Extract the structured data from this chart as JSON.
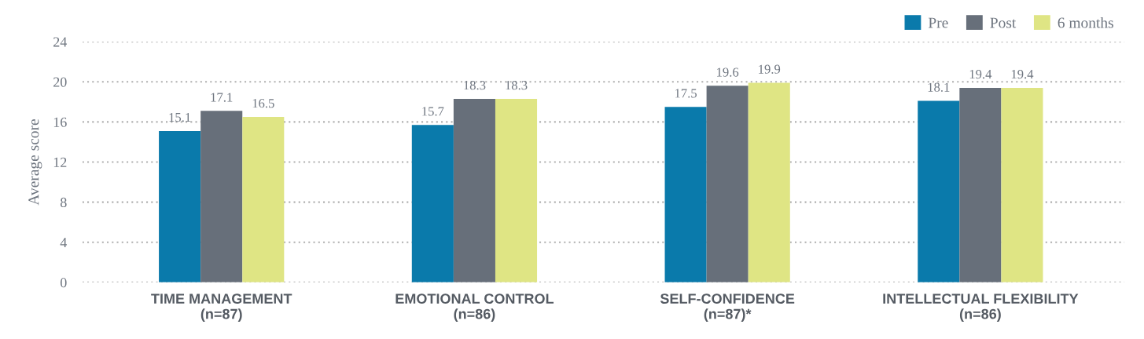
{
  "chart_data": {
    "type": "bar",
    "ylabel": "Average score",
    "categories": [
      "TIME MANAGEMENT\n(n=87)",
      "EMOTIONAL CONTROL\n(n=86)",
      "SELF-CONFIDENCE\n(n=87)*",
      "INTELLECTUAL FLEXIBILITY\n(n=86)"
    ],
    "series": [
      {
        "name": "Pre",
        "color": "#0a7aab",
        "values": [
          15.1,
          15.7,
          17.5,
          18.1
        ]
      },
      {
        "name": "Post",
        "color": "#676f7a",
        "values": [
          17.1,
          18.3,
          19.6,
          19.4
        ]
      },
      {
        "name": "6 months",
        "color": "#dfe584",
        "values": [
          16.5,
          18.3,
          19.9,
          19.4
        ]
      }
    ],
    "ylim": [
      0,
      24
    ],
    "yticks": [
      0,
      4,
      8,
      12,
      16,
      20,
      24
    ],
    "grid": "y",
    "legend": "top right",
    "data_labels": true
  }
}
